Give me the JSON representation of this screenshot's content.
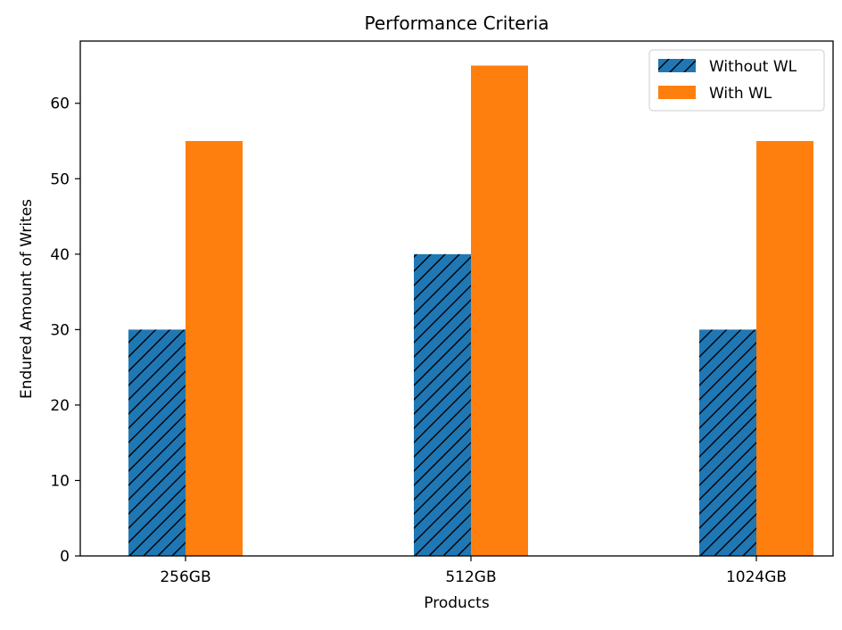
{
  "chart_data": {
    "type": "bar",
    "title": "Performance Criteria",
    "xlabel": "Products",
    "ylabel": "Endured Amount of Writes",
    "categories": [
      "256GB",
      "512GB",
      "1024GB"
    ],
    "series": [
      {
        "name": "Without WL",
        "values": [
          30,
          40,
          30
        ],
        "color": "#1f77b4",
        "hatch": "diagonal"
      },
      {
        "name": "With WL",
        "values": [
          55,
          65,
          55
        ],
        "color": "#ff7f0e",
        "hatch": "none"
      }
    ],
    "ylim": [
      0,
      68.25
    ],
    "yticks": [
      0,
      10,
      20,
      30,
      40,
      50,
      60
    ],
    "grid": false,
    "legend_position": "top-right"
  }
}
